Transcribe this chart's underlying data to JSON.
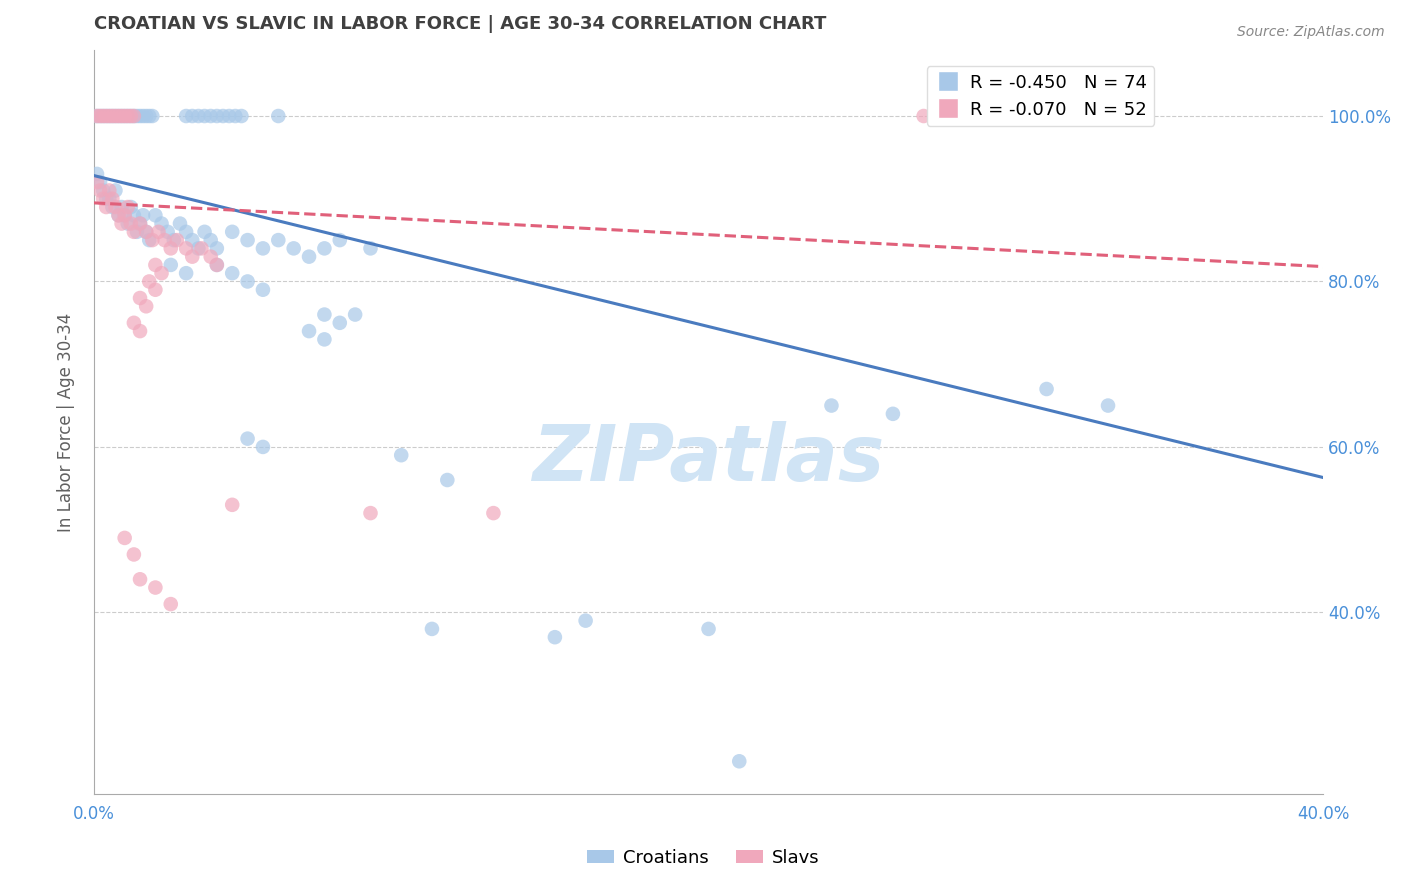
{
  "title": "CROATIAN VS SLAVIC IN LABOR FORCE | AGE 30-34 CORRELATION CHART",
  "source": "Source: ZipAtlas.com",
  "ylabel": "In Labor Force | Age 30-34",
  "xlim": [
    0.0,
    0.4
  ],
  "ylim": [
    0.18,
    1.08
  ],
  "ytick_positions": [
    0.4,
    0.6,
    0.8,
    1.0
  ],
  "ytick_labels": [
    "40.0%",
    "60.0%",
    "80.0%",
    "100.0%"
  ],
  "croatian_color": "#a8c8e8",
  "slavic_color": "#f0a8bc",
  "blue_line_color": "#4a7bbf",
  "pink_line_color": "#e0607a",
  "background_color": "#ffffff",
  "grid_color": "#cccccc",
  "title_color": "#404040",
  "axis_label_color": "#4a90d9",
  "watermark": "ZIPatlas",
  "watermark_color": "#d0e4f5",
  "scatter_size": 110,
  "blue_line": {
    "x0": 0.0,
    "y0": 0.928,
    "x1": 0.4,
    "y1": 0.563
  },
  "pink_line": {
    "x0": 0.0,
    "y0": 0.895,
    "x1": 0.4,
    "y1": 0.818
  },
  "croatians_scatter": [
    [
      0.001,
      1.0
    ],
    [
      0.002,
      1.0
    ],
    [
      0.003,
      1.0
    ],
    [
      0.004,
      1.0
    ],
    [
      0.005,
      1.0
    ],
    [
      0.006,
      1.0
    ],
    [
      0.007,
      1.0
    ],
    [
      0.008,
      1.0
    ],
    [
      0.009,
      1.0
    ],
    [
      0.01,
      1.0
    ],
    [
      0.011,
      1.0
    ],
    [
      0.012,
      1.0
    ],
    [
      0.013,
      1.0
    ],
    [
      0.014,
      1.0
    ],
    [
      0.015,
      1.0
    ],
    [
      0.016,
      1.0
    ],
    [
      0.017,
      1.0
    ],
    [
      0.018,
      1.0
    ],
    [
      0.019,
      1.0
    ],
    [
      0.03,
      1.0
    ],
    [
      0.032,
      1.0
    ],
    [
      0.034,
      1.0
    ],
    [
      0.036,
      1.0
    ],
    [
      0.038,
      1.0
    ],
    [
      0.04,
      1.0
    ],
    [
      0.042,
      1.0
    ],
    [
      0.044,
      1.0
    ],
    [
      0.046,
      1.0
    ],
    [
      0.048,
      1.0
    ],
    [
      0.06,
      1.0
    ],
    [
      0.001,
      0.93
    ],
    [
      0.002,
      0.92
    ],
    [
      0.003,
      0.91
    ],
    [
      0.004,
      0.9
    ],
    [
      0.005,
      0.9
    ],
    [
      0.006,
      0.89
    ],
    [
      0.007,
      0.91
    ],
    [
      0.008,
      0.88
    ],
    [
      0.009,
      0.89
    ],
    [
      0.01,
      0.88
    ],
    [
      0.011,
      0.87
    ],
    [
      0.012,
      0.89
    ],
    [
      0.013,
      0.88
    ],
    [
      0.014,
      0.86
    ],
    [
      0.015,
      0.87
    ],
    [
      0.016,
      0.88
    ],
    [
      0.017,
      0.86
    ],
    [
      0.018,
      0.85
    ],
    [
      0.02,
      0.88
    ],
    [
      0.022,
      0.87
    ],
    [
      0.024,
      0.86
    ],
    [
      0.026,
      0.85
    ],
    [
      0.028,
      0.87
    ],
    [
      0.03,
      0.86
    ],
    [
      0.032,
      0.85
    ],
    [
      0.034,
      0.84
    ],
    [
      0.036,
      0.86
    ],
    [
      0.038,
      0.85
    ],
    [
      0.04,
      0.84
    ],
    [
      0.045,
      0.86
    ],
    [
      0.05,
      0.85
    ],
    [
      0.055,
      0.84
    ],
    [
      0.06,
      0.85
    ],
    [
      0.065,
      0.84
    ],
    [
      0.07,
      0.83
    ],
    [
      0.075,
      0.84
    ],
    [
      0.08,
      0.85
    ],
    [
      0.09,
      0.84
    ],
    [
      0.025,
      0.82
    ],
    [
      0.03,
      0.81
    ],
    [
      0.04,
      0.82
    ],
    [
      0.045,
      0.81
    ],
    [
      0.05,
      0.8
    ],
    [
      0.055,
      0.79
    ],
    [
      0.075,
      0.76
    ],
    [
      0.08,
      0.75
    ],
    [
      0.085,
      0.76
    ],
    [
      0.07,
      0.74
    ],
    [
      0.075,
      0.73
    ],
    [
      0.05,
      0.61
    ],
    [
      0.055,
      0.6
    ],
    [
      0.24,
      0.65
    ],
    [
      0.26,
      0.64
    ],
    [
      0.31,
      0.67
    ],
    [
      0.33,
      0.65
    ],
    [
      0.11,
      0.38
    ],
    [
      0.15,
      0.37
    ],
    [
      0.16,
      0.39
    ],
    [
      0.1,
      0.59
    ],
    [
      0.115,
      0.56
    ],
    [
      0.2,
      0.38
    ],
    [
      0.21,
      0.22
    ]
  ],
  "slavs_scatter": [
    [
      0.001,
      1.0
    ],
    [
      0.002,
      1.0
    ],
    [
      0.003,
      1.0
    ],
    [
      0.004,
      1.0
    ],
    [
      0.005,
      1.0
    ],
    [
      0.006,
      1.0
    ],
    [
      0.007,
      1.0
    ],
    [
      0.008,
      1.0
    ],
    [
      0.009,
      1.0
    ],
    [
      0.01,
      1.0
    ],
    [
      0.011,
      1.0
    ],
    [
      0.012,
      1.0
    ],
    [
      0.013,
      1.0
    ],
    [
      0.27,
      1.0
    ],
    [
      0.001,
      0.92
    ],
    [
      0.002,
      0.91
    ],
    [
      0.003,
      0.9
    ],
    [
      0.004,
      0.89
    ],
    [
      0.005,
      0.91
    ],
    [
      0.006,
      0.9
    ],
    [
      0.007,
      0.89
    ],
    [
      0.008,
      0.88
    ],
    [
      0.009,
      0.87
    ],
    [
      0.01,
      0.88
    ],
    [
      0.011,
      0.89
    ],
    [
      0.012,
      0.87
    ],
    [
      0.013,
      0.86
    ],
    [
      0.015,
      0.87
    ],
    [
      0.017,
      0.86
    ],
    [
      0.019,
      0.85
    ],
    [
      0.021,
      0.86
    ],
    [
      0.023,
      0.85
    ],
    [
      0.025,
      0.84
    ],
    [
      0.027,
      0.85
    ],
    [
      0.03,
      0.84
    ],
    [
      0.032,
      0.83
    ],
    [
      0.035,
      0.84
    ],
    [
      0.038,
      0.83
    ],
    [
      0.04,
      0.82
    ],
    [
      0.02,
      0.82
    ],
    [
      0.022,
      0.81
    ],
    [
      0.018,
      0.8
    ],
    [
      0.02,
      0.79
    ],
    [
      0.015,
      0.78
    ],
    [
      0.017,
      0.77
    ],
    [
      0.013,
      0.75
    ],
    [
      0.015,
      0.74
    ],
    [
      0.045,
      0.53
    ],
    [
      0.09,
      0.52
    ],
    [
      0.13,
      0.52
    ],
    [
      0.01,
      0.49
    ],
    [
      0.013,
      0.47
    ],
    [
      0.015,
      0.44
    ],
    [
      0.02,
      0.43
    ],
    [
      0.025,
      0.41
    ]
  ]
}
